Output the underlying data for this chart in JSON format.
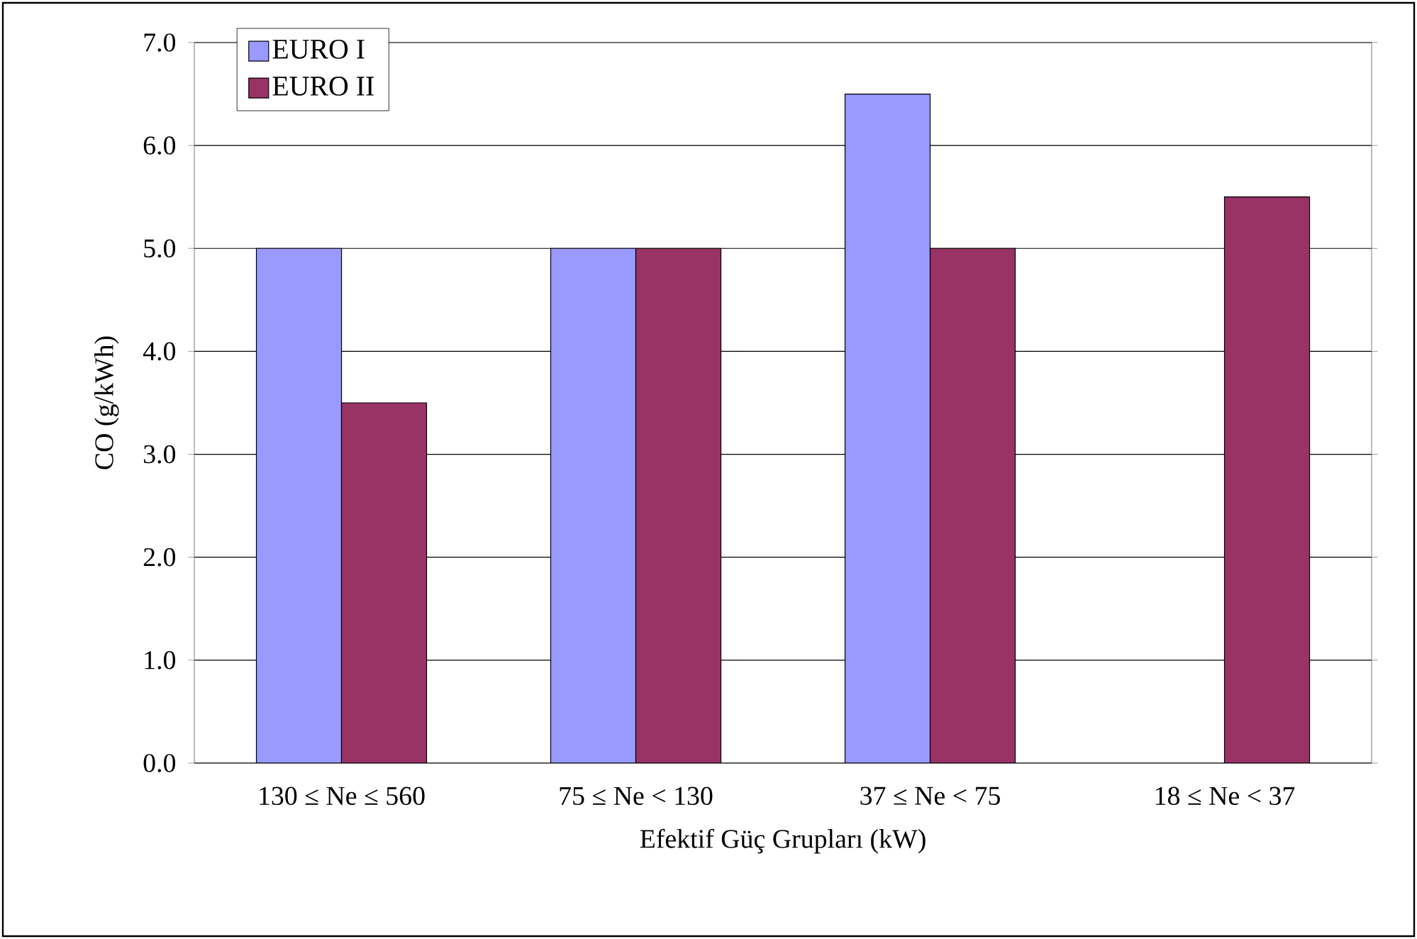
{
  "chart_data": {
    "type": "bar",
    "xlabel": "Efektif Güç Grupları (kW)",
    "ylabel": "CO (g/kWh)",
    "categories": [
      "130 ≤ Ne ≤ 560",
      "75 ≤ Ne < 130",
      "37 ≤ Ne < 75",
      "18 ≤ Ne < 37"
    ],
    "series": [
      {
        "name": "EURO I",
        "color": "#9999ff",
        "values": [
          5.0,
          5.0,
          6.5,
          null
        ]
      },
      {
        "name": "EURO II",
        "color": "#993366",
        "values": [
          3.5,
          5.0,
          5.0,
          5.5
        ]
      }
    ],
    "ylim": [
      0,
      7
    ],
    "yticks": [
      {
        "value": 0,
        "label": "0.0"
      },
      {
        "value": 1,
        "label": "1.0"
      },
      {
        "value": 2,
        "label": "2.0"
      },
      {
        "value": 3,
        "label": "3.0"
      },
      {
        "value": 4,
        "label": "4.0"
      },
      {
        "value": 5,
        "label": "5.0"
      },
      {
        "value": 6,
        "label": "6.0"
      },
      {
        "value": 7,
        "label": "7.0"
      }
    ],
    "grid": "y",
    "legend": "top left"
  }
}
